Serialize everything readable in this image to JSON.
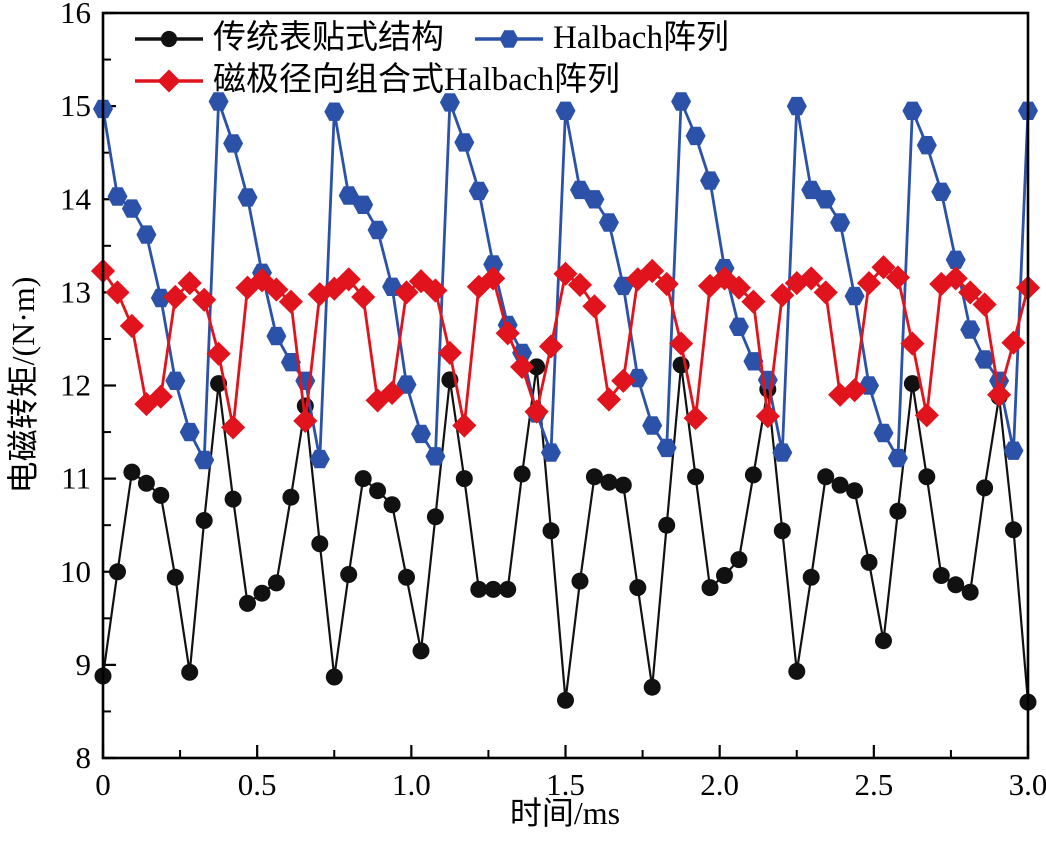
{
  "figure": {
    "background": "#ffffff",
    "frame_color": "#000000"
  },
  "chart_data": {
    "type": "line",
    "title": "",
    "xlabel": "时间/ms",
    "ylabel": "电磁转矩/(N·m)",
    "xlim": [
      0,
      3.0
    ],
    "ylim": [
      8,
      16
    ],
    "grid": false,
    "legend_position": "top-left-inside",
    "x_tick_values": [
      0,
      0.5,
      1.0,
      1.5,
      2.0,
      2.5,
      3.0
    ],
    "x_tick_labels": [
      "0",
      "0.5",
      "1.0",
      "1.5",
      "2.0",
      "2.5",
      "3.0"
    ],
    "y_tick_values": [
      8,
      9,
      10,
      11,
      12,
      13,
      14,
      15,
      16
    ],
    "y_tick_labels": [
      "8",
      "9",
      "10",
      "11",
      "12",
      "13",
      "14",
      "15",
      "16"
    ],
    "minor_tick_step_x": 0.25,
    "minor_tick_step_y": 0.5,
    "x_start": 0,
    "x_step": 0.046875,
    "series": [
      {
        "name": "传统表贴式结构",
        "color": "#111111",
        "marker": "circle",
        "line_width": 2.2,
        "values": [
          8.88,
          10.0,
          11.07,
          10.95,
          10.82,
          9.94,
          8.92,
          10.55,
          12.02,
          10.78,
          9.66,
          9.77,
          9.88,
          10.8,
          11.78,
          10.3,
          8.87,
          9.97,
          11.0,
          10.87,
          10.72,
          9.94,
          9.15,
          10.59,
          12.06,
          11.0,
          9.81,
          9.81,
          9.81,
          11.05,
          12.2,
          10.44,
          8.62,
          9.9,
          11.02,
          10.96,
          10.93,
          9.83,
          8.76,
          10.5,
          12.22,
          11.02,
          9.83,
          9.96,
          10.13,
          11.04,
          11.96,
          10.44,
          8.93,
          9.94,
          11.02,
          10.93,
          10.87,
          10.1,
          9.26,
          10.65,
          12.02,
          11.02,
          9.96,
          9.86,
          9.78,
          10.9,
          11.88,
          10.45,
          8.6
        ]
      },
      {
        "name": "Halbach阵列",
        "color": "#2B52A8",
        "marker": "hexagon",
        "line_width": 2.8,
        "values": [
          14.97,
          14.03,
          13.9,
          13.62,
          12.94,
          12.05,
          11.5,
          11.2,
          15.05,
          14.6,
          14.02,
          13.21,
          12.53,
          12.25,
          12.05,
          11.21,
          14.94,
          14.04,
          13.94,
          13.67,
          13.06,
          12.01,
          11.48,
          11.24,
          15.04,
          14.61,
          14.09,
          13.3,
          12.65,
          12.35,
          11.7,
          11.28,
          14.95,
          14.1,
          14.0,
          13.75,
          13.07,
          12.08,
          11.57,
          11.33,
          15.05,
          14.68,
          14.2,
          13.26,
          12.63,
          12.26,
          12.06,
          11.28,
          15.0,
          14.1,
          14.0,
          13.75,
          12.96,
          12.0,
          11.49,
          11.22,
          14.95,
          14.58,
          14.08,
          13.35,
          12.6,
          12.28,
          12.05,
          11.3,
          14.95
        ]
      },
      {
        "name": "磁极径向组合式Halbach阵列",
        "color": "#E1131C",
        "marker": "diamond",
        "line_width": 2.8,
        "values": [
          13.23,
          13.0,
          12.64,
          11.8,
          11.88,
          12.95,
          13.1,
          12.92,
          12.34,
          11.55,
          13.05,
          13.13,
          13.03,
          12.9,
          11.62,
          12.98,
          13.04,
          13.14,
          12.95,
          11.84,
          11.92,
          13.0,
          13.12,
          13.02,
          12.35,
          11.57,
          13.06,
          13.15,
          12.56,
          12.2,
          11.72,
          12.42,
          13.2,
          13.08,
          12.85,
          11.85,
          12.05,
          13.14,
          13.23,
          13.09,
          12.45,
          11.65,
          13.07,
          13.15,
          13.05,
          12.9,
          11.67,
          12.97,
          13.1,
          13.15,
          13.0,
          11.9,
          11.95,
          13.1,
          13.27,
          13.16,
          12.45,
          11.68,
          13.09,
          13.15,
          13.0,
          12.87,
          11.9,
          12.46,
          13.05
        ]
      }
    ]
  }
}
